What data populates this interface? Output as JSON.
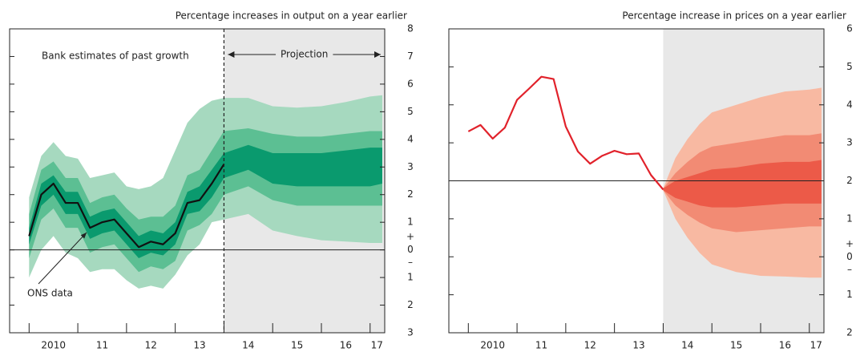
{
  "chart_data": [
    {
      "type": "fan",
      "title": "Percentage increases in output on a year earlier",
      "annotations": {
        "label_past": "Bank estimates of past growth",
        "label_projection": "Projection",
        "label_line": "ONS data"
      },
      "x": [
        2010.0,
        2010.25,
        2010.5,
        2010.75,
        2011.0,
        2011.25,
        2011.5,
        2011.75,
        2012.0,
        2012.25,
        2012.5,
        2012.75,
        2013.0,
        2013.25,
        2013.5,
        2013.75,
        2014.0
      ],
      "values": [
        0.5,
        2.0,
        2.4,
        1.7,
        1.7,
        0.8,
        1.0,
        1.1,
        0.6,
        0.1,
        0.3,
        0.2,
        0.6,
        1.7,
        1.8,
        2.4,
        3.1
      ],
      "color": "#111111",
      "fan_x": [
        2010.0,
        2010.25,
        2010.5,
        2010.75,
        2011.0,
        2011.25,
        2011.5,
        2011.75,
        2012.0,
        2012.25,
        2012.5,
        2012.75,
        2013.0,
        2013.25,
        2013.5,
        2013.75,
        2014.0,
        2014.5,
        2015.0,
        2015.5,
        2016.0,
        2016.5,
        2017.0,
        2017.25
      ],
      "bands": [
        {
          "color": "#a6d9bf",
          "upper": [
            1.9,
            3.4,
            3.9,
            3.4,
            3.3,
            2.6,
            2.7,
            2.8,
            2.3,
            2.2,
            2.3,
            2.6,
            3.6,
            4.6,
            5.1,
            5.4,
            5.5,
            5.5,
            5.2,
            5.15,
            5.2,
            5.35,
            5.55,
            5.6
          ],
          "lower": [
            -1.0,
            0.0,
            0.5,
            -0.1,
            -0.3,
            -0.8,
            -0.7,
            -0.7,
            -1.1,
            -1.4,
            -1.3,
            -1.4,
            -0.9,
            -0.2,
            0.2,
            1.0,
            1.1,
            1.3,
            0.7,
            0.5,
            0.35,
            0.3,
            0.25,
            0.25
          ]
        },
        {
          "color": "#5cbf93",
          "upper": [
            1.3,
            2.9,
            3.2,
            2.6,
            2.6,
            1.7,
            1.9,
            2.0,
            1.5,
            1.1,
            1.2,
            1.2,
            1.6,
            2.7,
            2.9,
            3.6,
            4.3,
            4.4,
            4.2,
            4.1,
            4.1,
            4.2,
            4.3,
            4.3
          ],
          "lower": [
            -0.3,
            1.1,
            1.5,
            0.8,
            0.8,
            -0.1,
            0.1,
            0.2,
            -0.3,
            -0.8,
            -0.6,
            -0.7,
            -0.4,
            0.7,
            0.9,
            1.3,
            2.0,
            2.3,
            1.8,
            1.6,
            1.6,
            1.6,
            1.6,
            1.6
          ]
        },
        {
          "color": "#0a9a6e",
          "upper": [
            0.8,
            2.4,
            2.7,
            2.1,
            2.1,
            1.2,
            1.4,
            1.5,
            1.0,
            0.5,
            0.7,
            0.6,
            1.0,
            2.1,
            2.3,
            2.9,
            3.5,
            3.8,
            3.5,
            3.5,
            3.5,
            3.6,
            3.7,
            3.7
          ],
          "lower": [
            0.2,
            1.6,
            2.0,
            1.3,
            1.3,
            0.4,
            0.6,
            0.7,
            0.2,
            -0.3,
            -0.1,
            -0.2,
            0.2,
            1.3,
            1.4,
            1.9,
            2.6,
            2.9,
            2.4,
            2.3,
            2.3,
            2.3,
            2.3,
            2.4
          ]
        }
      ],
      "xlim": [
        2009.6,
        2017.3
      ],
      "xticks": [
        2010,
        2011,
        2012,
        2013,
        2014,
        2015,
        2016,
        2017
      ],
      "xtick_labels": [
        {
          "value": 2010.5,
          "label": "2010"
        },
        {
          "value": 2011.5,
          "label": "11"
        },
        {
          "value": 2012.5,
          "label": "12"
        },
        {
          "value": 2013.5,
          "label": "13"
        },
        {
          "value": 2014.5,
          "label": "14"
        },
        {
          "value": 2015.5,
          "label": "15"
        },
        {
          "value": 2016.5,
          "label": "16"
        },
        {
          "value": 2017.14,
          "label": "17"
        }
      ],
      "ylim": [
        -3,
        8
      ],
      "yticks": [
        8,
        7,
        6,
        5,
        4,
        3,
        2,
        1,
        0,
        {
          "value": -1,
          "label": "1"
        },
        {
          "value": -2,
          "label": "2"
        },
        {
          "value": -3,
          "label": "3"
        }
      ],
      "sign_labels": [
        "+",
        "–"
      ],
      "reference_line": 0,
      "projection_start": 2014.0,
      "projection_shade": "#e8e8e8",
      "projection_divider": "dashed"
    },
    {
      "type": "fan",
      "title": "Percentage increase in prices on a year earlier",
      "x": [
        2010.0,
        2010.25,
        2010.5,
        2010.75,
        2011.0,
        2011.25,
        2011.5,
        2011.75,
        2012.0,
        2012.25,
        2012.5,
        2012.75,
        2013.0,
        2013.25,
        2013.5,
        2013.75,
        2014.0
      ],
      "values": [
        3.3,
        3.47,
        3.11,
        3.4,
        4.13,
        4.43,
        4.74,
        4.68,
        3.43,
        2.77,
        2.45,
        2.66,
        2.79,
        2.7,
        2.72,
        2.15,
        1.77
      ],
      "color": "#e1222b",
      "fan_x": [
        2014.0,
        2014.25,
        2014.5,
        2014.75,
        2015.0,
        2015.5,
        2016.0,
        2016.5,
        2017.0,
        2017.25
      ],
      "bands": [
        {
          "color": "#f8b9a2",
          "upper": [
            1.8,
            2.6,
            3.1,
            3.5,
            3.8,
            4.0,
            4.2,
            4.35,
            4.4,
            4.45
          ],
          "lower": [
            1.75,
            1.0,
            0.5,
            0.1,
            -0.2,
            -0.4,
            -0.5,
            -0.52,
            -0.55,
            -0.55
          ]
        },
        {
          "color": "#f28b74",
          "upper": [
            1.8,
            2.2,
            2.5,
            2.75,
            2.9,
            3.0,
            3.1,
            3.2,
            3.2,
            3.25
          ],
          "lower": [
            1.75,
            1.35,
            1.1,
            0.9,
            0.75,
            0.65,
            0.7,
            0.75,
            0.8,
            0.8
          ]
        },
        {
          "color": "#ec5a48",
          "upper": [
            1.8,
            2.0,
            2.1,
            2.2,
            2.3,
            2.35,
            2.45,
            2.5,
            2.5,
            2.55
          ],
          "lower": [
            1.75,
            1.55,
            1.45,
            1.35,
            1.3,
            1.3,
            1.35,
            1.4,
            1.4,
            1.4
          ]
        }
      ],
      "xlim": [
        2009.6,
        2017.3
      ],
      "xticks": [
        2010,
        2011,
        2012,
        2013,
        2014,
        2015,
        2016,
        2017
      ],
      "xtick_labels": [
        {
          "value": 2010.5,
          "label": "2010"
        },
        {
          "value": 2011.5,
          "label": "11"
        },
        {
          "value": 2012.5,
          "label": "12"
        },
        {
          "value": 2013.5,
          "label": "13"
        },
        {
          "value": 2014.5,
          "label": "14"
        },
        {
          "value": 2015.5,
          "label": "15"
        },
        {
          "value": 2016.5,
          "label": "16"
        },
        {
          "value": 2017.14,
          "label": "17"
        }
      ],
      "ylim": [
        -2,
        6
      ],
      "yticks": [
        6,
        5,
        4,
        3,
        2,
        1,
        0,
        {
          "value": -1,
          "label": "1"
        },
        {
          "value": -2,
          "label": "2"
        }
      ],
      "sign_labels": [
        "+",
        "–"
      ],
      "reference_line": 2,
      "projection_start": 2014.0,
      "projection_shade": "#e8e8e8"
    }
  ]
}
